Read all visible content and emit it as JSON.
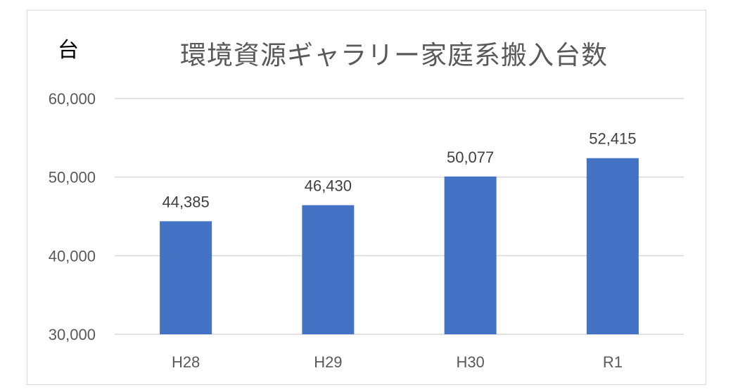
{
  "chart_data": {
    "type": "bar",
    "title": "環境資源ギャラリー家庭系搬入台数",
    "ylabel": "台",
    "xlabel": "",
    "categories": [
      "H28",
      "H29",
      "H30",
      "R1"
    ],
    "values": [
      44385,
      46430,
      50077,
      52415
    ],
    "data_labels": [
      "44,385",
      "46,430",
      "50,077",
      "52,415"
    ],
    "ylim": [
      30000,
      60000
    ],
    "yticks": [
      30000,
      40000,
      50000,
      60000
    ],
    "ytick_labels": [
      "30,000",
      "40,000",
      "50,000",
      "60,000"
    ],
    "grid": true,
    "legend": "none",
    "bar_color": "#4472C4"
  }
}
